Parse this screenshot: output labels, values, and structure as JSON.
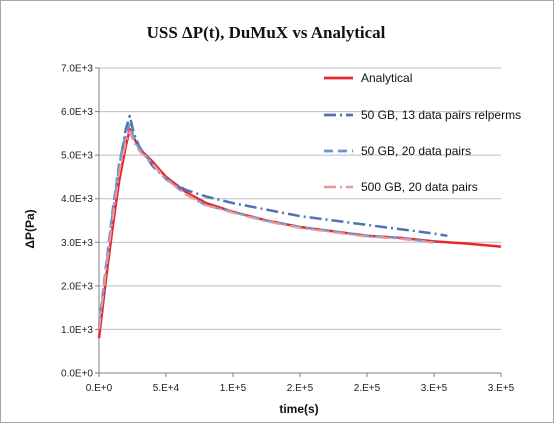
{
  "chart_data": {
    "type": "line",
    "title": "USS ΔP(t), DuMuX vs Analytical",
    "xlabel": "time(s)",
    "ylabel": "ΔP(Pa)",
    "xlim": [
      0,
      300000
    ],
    "ylim": [
      0,
      7000
    ],
    "x_ticks": [
      0,
      50000,
      100000,
      150000,
      200000,
      250000,
      300000
    ],
    "x_tick_labels": [
      "0.E+0",
      "5.E+4",
      "1.E+5",
      "2.E+5",
      "2.E+5",
      "3.E+5",
      "3.E+5"
    ],
    "y_ticks": [
      0,
      1000,
      2000,
      3000,
      4000,
      5000,
      6000,
      7000
    ],
    "y_tick_labels": [
      "0.0E+0",
      "1.0E+3",
      "2.0E+3",
      "3.0E+3",
      "4.0E+3",
      "5.0E+3",
      "6.0E+3",
      "7.0E+3"
    ],
    "grid": "horizontal",
    "legend_position": "right",
    "series": [
      {
        "name": "Analytical",
        "color": "#e8262c",
        "style": "solid",
        "width": 2.5,
        "x": [
          0,
          5000,
          10000,
          15000,
          20000,
          23000,
          30000,
          40000,
          50000,
          65000,
          80000,
          100000,
          125000,
          150000,
          175000,
          200000,
          225000,
          250000,
          275000,
          300000
        ],
        "y": [
          800,
          2100,
          3300,
          4400,
          5200,
          5600,
          5150,
          4850,
          4500,
          4150,
          3900,
          3700,
          3500,
          3350,
          3250,
          3150,
          3100,
          3020,
          2970,
          2900
        ]
      },
      {
        "name": "50 GB, 13 data pairs relperms",
        "color": "#4f74b0",
        "style": "dashdot",
        "width": 2.5,
        "x": [
          0,
          5000,
          10000,
          15000,
          20000,
          23000,
          26000,
          30000,
          40000,
          50000,
          65000,
          80000,
          100000,
          125000,
          150000,
          175000,
          200000,
          225000,
          250000,
          260000
        ],
        "y": [
          1000,
          2300,
          3600,
          4700,
          5600,
          5900,
          5500,
          5200,
          4750,
          4450,
          4200,
          4050,
          3900,
          3750,
          3600,
          3500,
          3400,
          3300,
          3200,
          3150
        ]
      },
      {
        "name": "50 GB, 20 data pairs",
        "color": "#6b93d6",
        "style": "dashed",
        "width": 2.5,
        "x": [
          0,
          5000,
          10000,
          15000,
          20000,
          23000,
          26000,
          30000,
          40000,
          50000,
          65000,
          80000,
          100000,
          125000,
          150000,
          175000,
          200000,
          225000,
          250000
        ],
        "y": [
          1100,
          2400,
          3700,
          4800,
          5500,
          5700,
          5400,
          5150,
          4800,
          4450,
          4100,
          3850,
          3700,
          3500,
          3350,
          3250,
          3150,
          3100,
          3000
        ]
      },
      {
        "name": "500 GB, 20 data pairs",
        "color": "#e39a9a",
        "style": "dashdot",
        "width": 2.2,
        "x": [
          0,
          5000,
          10000,
          15000,
          20000,
          23000,
          26000,
          30000,
          40000,
          50000,
          65000,
          80000,
          100000,
          125000,
          150000,
          175000,
          200000,
          225000,
          250000
        ],
        "y": [
          1000,
          2300,
          3500,
          4600,
          5300,
          5550,
          5300,
          5100,
          4800,
          4450,
          4100,
          3850,
          3680,
          3480,
          3330,
          3230,
          3130,
          3080,
          2990
        ]
      }
    ]
  }
}
